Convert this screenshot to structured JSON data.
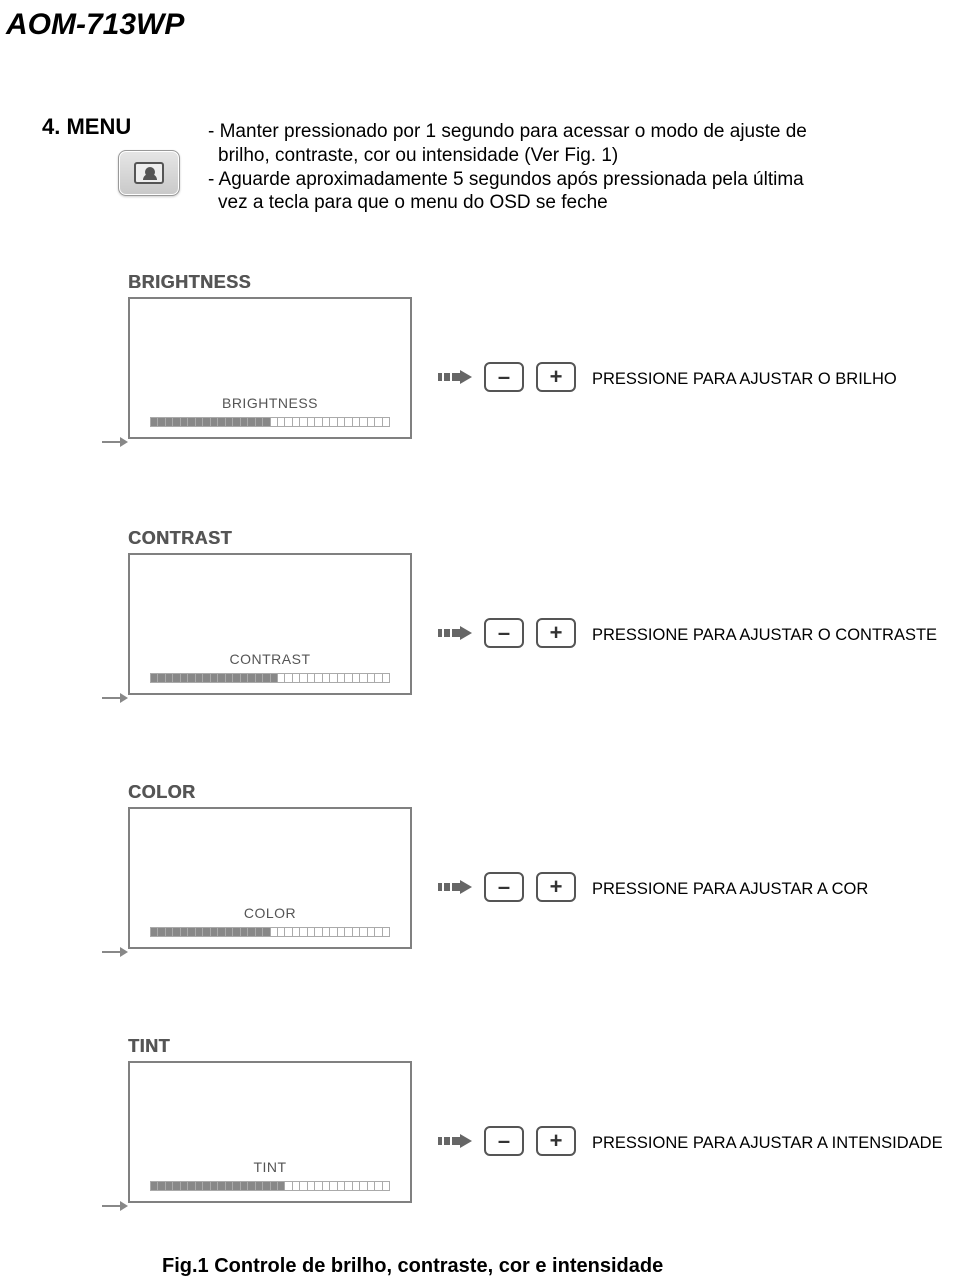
{
  "model": "AOM-713WP",
  "section": {
    "number": "4.",
    "title": "MENU"
  },
  "intro": {
    "line1": "- Manter pressionado por 1 segundo para acessar o modo de ajuste de",
    "line2": "brilho, contraste, cor ou intensidade (Ver Fig. 1)",
    "line3": "- Aguarde aproximadamente 5 segundos após pressionada pela última",
    "line4": "vez a tecla para que o menu do OSD se feche"
  },
  "osd": {
    "brightness": {
      "title": "BRIGHTNESS",
      "label": "BRIGHTNESS",
      "fill_ratio": 0.5,
      "segments": 32
    },
    "contrast": {
      "title": "CONTRAST",
      "label": "CONTRAST",
      "fill_ratio": 0.53,
      "segments": 32
    },
    "color": {
      "title": "COLOR",
      "label": "COLOR",
      "fill_ratio": 0.5,
      "segments": 32
    },
    "tint": {
      "title": "TINT",
      "label": "TINT",
      "fill_ratio": 0.56,
      "segments": 32
    }
  },
  "buttons": {
    "minus": "–",
    "plus": "+"
  },
  "instructions": {
    "brightness": "PRESSIONE PARA AJUSTAR O BRILHO",
    "contrast": "PRESSIONE PARA AJUSTAR O CONTRASTE",
    "color": "PRESSIONE PARA AJUSTAR A COR",
    "tint": "PRESSIONE PARA AJUSTAR A INTENSIDADE"
  },
  "caption": "Fig.1 Controle de brilho, contraste, cor e intensidade",
  "colors": {
    "text": "#000000",
    "muted": "#555555",
    "border": "#808080",
    "button_border": "#555555",
    "bar_filled": "#888888",
    "bg": "#ffffff"
  }
}
